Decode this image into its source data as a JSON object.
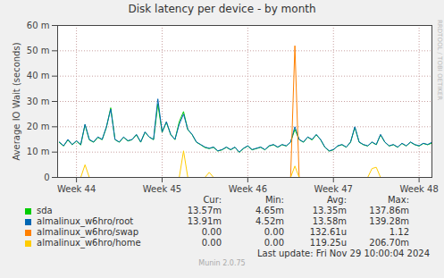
{
  "chart_data": {
    "type": "line",
    "title": "Disk latency per device - by month",
    "y_label": "Average IO Wait (seconds)",
    "x": [
      43.8,
      43.85,
      43.9,
      43.95,
      44,
      44.05,
      44.1,
      44.15,
      44.2,
      44.25,
      44.3,
      44.35,
      44.4,
      44.45,
      44.5,
      44.55,
      44.6,
      44.65,
      44.7,
      44.75,
      44.8,
      44.85,
      44.9,
      44.95,
      45,
      45.05,
      45.1,
      45.15,
      45.2,
      45.25,
      45.3,
      45.35,
      45.4,
      45.45,
      45.5,
      45.55,
      45.6,
      45.65,
      45.7,
      45.75,
      45.8,
      45.85,
      45.9,
      45.95,
      46,
      46.05,
      46.1,
      46.15,
      46.2,
      46.25,
      46.3,
      46.35,
      46.4,
      46.45,
      46.5,
      46.55,
      46.6,
      46.65,
      46.7,
      46.75,
      46.8,
      46.85,
      46.9,
      46.95,
      47,
      47.05,
      47.1,
      47.15,
      47.2,
      47.25,
      47.3,
      47.35,
      47.4,
      47.45,
      47.5,
      47.55,
      47.6,
      47.65,
      47.7,
      47.75,
      47.8,
      47.85,
      47.9,
      47.95,
      48,
      48.05,
      48.1,
      48.15
    ],
    "xlim": [
      43.78,
      48.15
    ],
    "xticks": [
      {
        "value": 44,
        "label": "Week 44"
      },
      {
        "value": 45,
        "label": "Week 45"
      },
      {
        "value": 46,
        "label": "Week 46"
      },
      {
        "value": 47,
        "label": "Week 47"
      },
      {
        "value": 48,
        "label": "Week 48"
      }
    ],
    "ylim": [
      0,
      0.06
    ],
    "yticks": [
      0,
      {
        "value": 0.01,
        "label": "10 m"
      },
      {
        "value": 0.02,
        "label": "20 m"
      },
      {
        "value": 0.03,
        "label": "30 m"
      },
      {
        "value": 0.04,
        "label": "40 m"
      },
      {
        "value": 0.05,
        "label": "50 m"
      },
      {
        "value": 0.06,
        "label": "60 m"
      }
    ],
    "grid": true,
    "stats_columns": [
      "Cur:",
      "Min:",
      "Avg:",
      "Max:"
    ],
    "series": [
      {
        "name": "sda",
        "color": "#00cc00",
        "stats": [
          "13.57m",
          "4.65m",
          "13.35m",
          "137.86m"
        ],
        "values": [
          0.0138,
          0.0124,
          0.0148,
          0.0129,
          0.0143,
          0.0128,
          0.0208,
          0.0148,
          0.0139,
          0.0158,
          0.0149,
          0.0198,
          0.0275,
          0.0149,
          0.0139,
          0.0158,
          0.0144,
          0.0149,
          0.0168,
          0.0139,
          0.0178,
          0.0159,
          0.0149,
          0.029,
          0.0178,
          0.0218,
          0.0169,
          0.0149,
          0.022,
          0.026,
          0.0188,
          0.0169,
          0.0139,
          0.0129,
          0.0118,
          0.0114,
          0.0119,
          0.0104,
          0.0109,
          0.0119,
          0.0109,
          0.0119,
          0.0099,
          0.0114,
          0.0124,
          0.0109,
          0.0114,
          0.0119,
          0.0109,
          0.0124,
          0.0129,
          0.0119,
          0.0129,
          0.0124,
          0.0139,
          0.019,
          0.0149,
          0.0139,
          0.0159,
          0.0148,
          0.0168,
          0.0149,
          0.0119,
          0.0104,
          0.0109,
          0.0124,
          0.0129,
          0.0119,
          0.0139,
          0.0198,
          0.0139,
          0.0129,
          0.0124,
          0.0139,
          0.0129,
          0.0168,
          0.0139,
          0.0124,
          0.0129,
          0.0119,
          0.0134,
          0.0124,
          0.0139,
          0.0129,
          0.0124,
          0.0134,
          0.0129,
          0.01357
        ]
      },
      {
        "name": "almalinux_w6hro/root",
        "color": "#0066b3",
        "stats": [
          "13.91m",
          "4.52m",
          "13.58m",
          "139.28m"
        ],
        "values": [
          0.014,
          0.0125,
          0.015,
          0.013,
          0.0145,
          0.013,
          0.021,
          0.015,
          0.014,
          0.016,
          0.015,
          0.02,
          0.027,
          0.015,
          0.014,
          0.016,
          0.0145,
          0.015,
          0.017,
          0.014,
          0.018,
          0.016,
          0.015,
          0.031,
          0.018,
          0.022,
          0.017,
          0.015,
          0.021,
          0.025,
          0.019,
          0.017,
          0.014,
          0.013,
          0.012,
          0.0115,
          0.012,
          0.0105,
          0.011,
          0.012,
          0.011,
          0.012,
          0.01,
          0.0115,
          0.0125,
          0.011,
          0.0115,
          0.012,
          0.011,
          0.0125,
          0.013,
          0.012,
          0.013,
          0.0125,
          0.014,
          0.02,
          0.015,
          0.014,
          0.016,
          0.015,
          0.017,
          0.015,
          0.012,
          0.0105,
          0.011,
          0.0125,
          0.013,
          0.012,
          0.014,
          0.02,
          0.014,
          0.013,
          0.0125,
          0.014,
          0.013,
          0.017,
          0.014,
          0.0125,
          0.013,
          0.012,
          0.0135,
          0.0125,
          0.014,
          0.013,
          0.0125,
          0.0135,
          0.013,
          0.0139
        ]
      },
      {
        "name": "almalinux_w6hro/swap",
        "color": "#ff8000",
        "stats": [
          "0.00",
          "0.00",
          "132.61u",
          "1.12"
        ],
        "values": [
          0,
          0,
          0,
          0,
          0,
          0,
          0,
          0,
          0,
          0,
          0,
          0,
          0,
          0,
          0,
          0,
          0,
          0,
          0,
          0,
          0,
          0,
          0,
          0,
          0,
          0,
          0,
          0,
          0,
          0,
          0,
          0,
          0,
          0,
          0,
          0,
          0,
          0,
          0,
          0,
          0,
          0,
          0,
          0,
          0,
          0,
          0,
          0,
          0,
          0,
          0,
          0,
          0,
          0,
          0,
          0.052,
          0,
          0,
          0,
          0,
          0,
          0,
          0,
          0,
          0,
          0,
          0,
          0,
          0,
          0,
          0,
          0,
          0,
          0,
          0,
          0,
          0,
          0,
          0,
          0,
          0,
          0,
          0,
          0,
          0,
          0,
          0,
          0
        ]
      },
      {
        "name": "almalinux_w6hro/home",
        "color": "#ffcc00",
        "stats": [
          "0.00",
          "0.00",
          "119.25u",
          "206.70m"
        ],
        "values": [
          0,
          0,
          0,
          0,
          0,
          0,
          0.005,
          0,
          0,
          0,
          0,
          0,
          0,
          0,
          0,
          0,
          0,
          0,
          0,
          0,
          0,
          0,
          0,
          0,
          0,
          0,
          0,
          0,
          0,
          0.0105,
          0,
          0,
          0,
          0,
          0,
          0.002,
          0,
          0,
          0,
          0,
          0,
          0,
          0,
          0,
          0,
          0,
          0,
          0,
          0,
          0,
          0,
          0,
          0,
          0,
          0,
          0.0045,
          0,
          0,
          0,
          0,
          0,
          0,
          0,
          0,
          0,
          0,
          0,
          0,
          0,
          0,
          0,
          0,
          0,
          0.0035,
          0.004,
          0,
          0,
          0,
          0,
          0,
          0,
          0,
          0,
          0,
          0,
          0,
          0,
          0
        ]
      }
    ],
    "last_update": "Last update: Fri Nov 29 10:00:04 2024",
    "footer": "Munin 2.0.75",
    "side_text": "RRDTOOL / TOBI OETIKER"
  }
}
